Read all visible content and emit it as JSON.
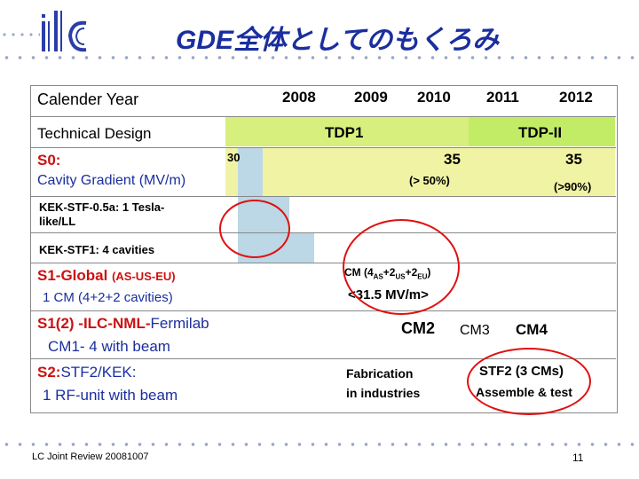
{
  "header": {
    "logo_text": "ilc",
    "title": "GDE全体としてのもくろみ"
  },
  "table": {
    "row_calendar_label": "Calender Year",
    "years": [
      "2008",
      "2009",
      "2010",
      "2011",
      "2012"
    ],
    "row_design_label": "Technical Design",
    "tdp1": "TDP1",
    "tdp2": "TDP-II",
    "s0_label": "S0:",
    "s0_desc": "Cavity Gradient (MV/m)",
    "val_30": "30",
    "val_35a": "35",
    "val_35b": "35",
    "pct_50": "(> 50%)",
    "pct_90": "(>90%)",
    "kek_stf05": "KEK-STF-0.5a: 1 Tesla-",
    "kek_stf05_2": "like/LL",
    "kek_stf1": "KEK-STF1: 4 cavities",
    "s1_global_label": "S1-Global",
    "s1_global_sub": "(AS-US-EU)",
    "s1_global_desc": "1 CM (4+2+2 cavities)",
    "cm_main": "CM (4",
    "cm_as": "AS",
    "cm_plus1": "+2",
    "cm_us": "US",
    "cm_plus2": "+2",
    "cm_eu": "EU",
    "cm_close": ")",
    "gradient_target": "<31.5 MV/m>",
    "s12_label": "S1(2) -ILC-NML-",
    "s12_fermi": "Fermilab",
    "s12_desc": "CM1- 4 with beam",
    "cm2": "CM2",
    "cm3": "CM3",
    "cm4": "CM4",
    "s2_label": "S2:",
    "s2_stf": "STF2/KEK:",
    "s2_desc": "1 RF-unit   with beam",
    "fab_1": "Fabrication",
    "fab_2": "in industries",
    "stf2": "STF2 (3 CMs)",
    "assemble": "Assemble & test"
  },
  "footer": {
    "left": "LC Joint Review 20081007",
    "page": "11"
  },
  "colors": {
    "title": "#1a2e9e",
    "s_label_red": "#cc1111",
    "tdp1_green": "#d7ef7c",
    "tdp2_green": "#c2ec66",
    "yellow": "#f0f3a4",
    "blue": "#bcd7e5",
    "ellipse_red": "#e01010"
  }
}
